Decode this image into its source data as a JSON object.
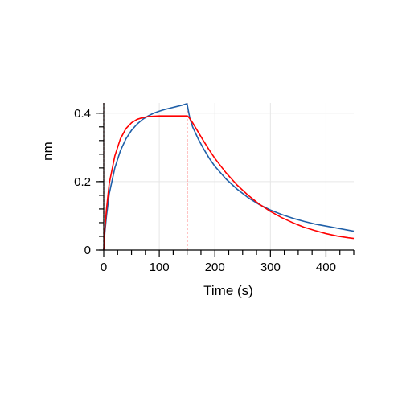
{
  "chart_data": {
    "type": "line",
    "title": "",
    "xlabel": "Time (s)",
    "ylabel": "nm",
    "xlim": [
      0,
      450
    ],
    "ylim": [
      0,
      0.43
    ],
    "x_ticks": [
      0,
      100,
      200,
      300,
      400
    ],
    "x_tick_labels": [
      "0",
      "100",
      "200",
      "300",
      "400"
    ],
    "y_ticks": [
      0,
      0.2,
      0.4
    ],
    "y_tick_labels": [
      "0",
      "0.2",
      "0.4"
    ],
    "grid": true,
    "legend": "none",
    "markers": [
      {
        "x": 0,
        "color": "#8b0000",
        "style": "dashed"
      },
      {
        "x": 150,
        "color": "#ff2020",
        "style": "dashed"
      }
    ],
    "series": [
      {
        "color": "#1f5fa8",
        "x": [
          0,
          2,
          5,
          10,
          20,
          30,
          40,
          50,
          60,
          70,
          80,
          90,
          100,
          110,
          120,
          130,
          140,
          150,
          152,
          155,
          160,
          170,
          180,
          190,
          200,
          220,
          240,
          260,
          280,
          300,
          320,
          340,
          360,
          380,
          400,
          420,
          440,
          450
        ],
        "y": [
          0.0,
          0.05,
          0.1,
          0.165,
          0.24,
          0.29,
          0.325,
          0.35,
          0.368,
          0.382,
          0.392,
          0.4,
          0.406,
          0.411,
          0.415,
          0.419,
          0.423,
          0.428,
          0.41,
          0.385,
          0.36,
          0.325,
          0.295,
          0.268,
          0.245,
          0.208,
          0.178,
          0.153,
          0.133,
          0.117,
          0.104,
          0.093,
          0.084,
          0.076,
          0.07,
          0.064,
          0.058,
          0.055
        ]
      },
      {
        "color": "#ff0000",
        "x": [
          0,
          2,
          5,
          10,
          20,
          30,
          40,
          50,
          60,
          70,
          80,
          90,
          100,
          110,
          120,
          130,
          140,
          150,
          152,
          155,
          160,
          170,
          180,
          190,
          200,
          220,
          240,
          260,
          280,
          300,
          320,
          340,
          360,
          380,
          400,
          420,
          440,
          450
        ],
        "y": [
          0.0,
          0.06,
          0.12,
          0.195,
          0.275,
          0.325,
          0.355,
          0.372,
          0.382,
          0.387,
          0.39,
          0.391,
          0.392,
          0.392,
          0.392,
          0.392,
          0.392,
          0.392,
          0.39,
          0.384,
          0.372,
          0.345,
          0.318,
          0.292,
          0.268,
          0.226,
          0.19,
          0.16,
          0.134,
          0.113,
          0.095,
          0.08,
          0.067,
          0.057,
          0.048,
          0.041,
          0.036,
          0.034
        ]
      }
    ]
  }
}
